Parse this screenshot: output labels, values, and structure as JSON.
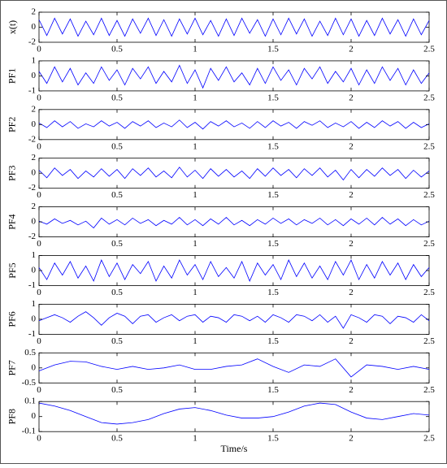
{
  "chart_data": [
    {
      "type": "line",
      "ylabel": "x(t)",
      "color": "#0000ff",
      "x": [
        0,
        0.05,
        0.1,
        0.15,
        0.2,
        0.25,
        0.3,
        0.35,
        0.4,
        0.45,
        0.5,
        0.55,
        0.6,
        0.65,
        0.7,
        0.75,
        0.8,
        0.85,
        0.9,
        0.95,
        1,
        1.05,
        1.1,
        1.15,
        1.2,
        1.25,
        1.3,
        1.35,
        1.4,
        1.45,
        1.5,
        1.55,
        1.6,
        1.65,
        1.7,
        1.75,
        1.8,
        1.85,
        1.9,
        1.95,
        2,
        2.05,
        2.1,
        2.15,
        2.2,
        2.25,
        2.3,
        2.35,
        2.4,
        2.45,
        2.5
      ],
      "values": [
        1,
        -1.1,
        1.2,
        -0.9,
        1.1,
        -1.2,
        0.8,
        -1,
        1.2,
        -1.1,
        0.9,
        -1.2,
        1.1,
        -0.8,
        1.2,
        -1.1,
        1,
        -1.2,
        1.1,
        -0.9,
        1.2,
        -1,
        0.9,
        -1.2,
        1.1,
        -1.1,
        1.2,
        -0.8,
        1,
        -1.2,
        1.1,
        -1,
        1.2,
        -0.9,
        1.1,
        -1.2,
        0.8,
        -1.1,
        1.2,
        -1,
        1.1,
        -1.2,
        0.9,
        -1.1,
        1.2,
        -0.9,
        1,
        -1.2,
        1.1,
        -1,
        0.9
      ],
      "xlim": [
        0,
        2.5
      ],
      "xticks": [
        0,
        0.5,
        1,
        1.5,
        2,
        2.5
      ],
      "ylim": [
        -2,
        2
      ],
      "yticks": [
        -2,
        0,
        2
      ]
    },
    {
      "type": "line",
      "ylabel": "PF1",
      "color": "#0000ff",
      "x": [
        0,
        0.05,
        0.1,
        0.15,
        0.2,
        0.25,
        0.3,
        0.35,
        0.4,
        0.45,
        0.5,
        0.55,
        0.6,
        0.65,
        0.7,
        0.75,
        0.8,
        0.85,
        0.9,
        0.95,
        1,
        1.05,
        1.1,
        1.15,
        1.2,
        1.25,
        1.3,
        1.35,
        1.4,
        1.45,
        1.5,
        1.55,
        1.6,
        1.65,
        1.7,
        1.75,
        1.8,
        1.85,
        1.9,
        1.95,
        2,
        2.05,
        2.1,
        2.15,
        2.2,
        2.25,
        2.3,
        2.35,
        2.4,
        2.45,
        2.5
      ],
      "values": [
        0.3,
        -0.5,
        0.6,
        -0.4,
        0.5,
        -0.6,
        0.2,
        -0.5,
        0.6,
        -0.3,
        0.4,
        -0.6,
        0.5,
        -0.2,
        0.6,
        -0.5,
        0.3,
        -0.4,
        0.7,
        -0.5,
        0.4,
        -0.8,
        0.5,
        -0.3,
        0.6,
        -0.4,
        0.2,
        -0.6,
        0.5,
        -0.5,
        0.6,
        -0.3,
        0.4,
        -0.6,
        0.5,
        -0.2,
        0.6,
        -0.5,
        0.3,
        -0.4,
        0.5,
        -0.6,
        0.4,
        -0.5,
        0.6,
        -0.3,
        0.5,
        -0.6,
        0.4,
        -0.5,
        0.2
      ],
      "xlim": [
        0,
        2.5
      ],
      "xticks": [
        0,
        0.5,
        1,
        1.5,
        2,
        2.5
      ],
      "ylim": [
        -1,
        1
      ],
      "yticks": [
        -1,
        0,
        1
      ]
    },
    {
      "type": "line",
      "ylabel": "PF2",
      "color": "#0000ff",
      "x": [
        0,
        0.05,
        0.1,
        0.15,
        0.2,
        0.25,
        0.3,
        0.35,
        0.4,
        0.45,
        0.5,
        0.55,
        0.6,
        0.65,
        0.7,
        0.75,
        0.8,
        0.85,
        0.9,
        0.95,
        1,
        1.05,
        1.1,
        1.15,
        1.2,
        1.25,
        1.3,
        1.35,
        1.4,
        1.45,
        1.5,
        1.55,
        1.6,
        1.65,
        1.7,
        1.75,
        1.8,
        1.85,
        1.9,
        1.95,
        2,
        2.05,
        2.1,
        2.15,
        2.2,
        2.25,
        2.3,
        2.35,
        2.4,
        2.45,
        2.5
      ],
      "values": [
        0.2,
        -0.4,
        0.5,
        -0.3,
        0.4,
        -0.5,
        0.1,
        -0.3,
        0.5,
        -0.2,
        0.3,
        -0.5,
        0.4,
        -0.2,
        0.5,
        -0.4,
        0.2,
        -0.3,
        0.6,
        -0.4,
        0.3,
        -0.6,
        0.4,
        -0.2,
        0.5,
        -0.3,
        0.2,
        -0.5,
        0.4,
        -0.4,
        0.5,
        -0.2,
        0.3,
        -0.5,
        0.4,
        -0.1,
        0.5,
        -0.4,
        0.2,
        -0.3,
        0.4,
        -0.5,
        0.3,
        -0.4,
        0.5,
        -0.2,
        0.4,
        -0.5,
        0.3,
        -0.4,
        0.1
      ],
      "xlim": [
        0,
        2.5
      ],
      "xticks": [
        0,
        0.5,
        1,
        1.5,
        2,
        2.5
      ],
      "ylim": [
        -2,
        2
      ],
      "yticks": [
        -2,
        0,
        2
      ]
    },
    {
      "type": "line",
      "ylabel": "PF3",
      "color": "#0000ff",
      "x": [
        0,
        0.05,
        0.1,
        0.15,
        0.2,
        0.25,
        0.3,
        0.35,
        0.4,
        0.45,
        0.5,
        0.55,
        0.6,
        0.65,
        0.7,
        0.75,
        0.8,
        0.85,
        0.9,
        0.95,
        1,
        1.05,
        1.1,
        1.15,
        1.2,
        1.25,
        1.3,
        1.35,
        1.4,
        1.45,
        1.5,
        1.55,
        1.6,
        1.65,
        1.7,
        1.75,
        1.8,
        1.85,
        1.9,
        1.95,
        2,
        2.05,
        2.1,
        2.15,
        2.2,
        2.25,
        2.3,
        2.35,
        2.4,
        2.45,
        2.5
      ],
      "values": [
        0.4,
        -0.6,
        0.7,
        -0.3,
        0.5,
        -0.7,
        0.3,
        -0.5,
        0.6,
        -0.4,
        0.5,
        -0.7,
        0.6,
        -0.3,
        0.7,
        -0.5,
        0.3,
        -0.6,
        0.8,
        -0.5,
        0.4,
        -0.7,
        0.6,
        -0.4,
        0.5,
        -0.5,
        0.3,
        -0.7,
        0.6,
        -0.4,
        0.7,
        -0.3,
        0.5,
        -0.6,
        0.6,
        -0.3,
        0.7,
        -0.5,
        0.4,
        -0.9,
        0.5,
        -0.6,
        0.5,
        -0.4,
        0.7,
        -0.3,
        0.5,
        -0.7,
        0.4,
        -0.5,
        0.3
      ],
      "xlim": [
        0,
        2.5
      ],
      "xticks": [
        0,
        0.5,
        1,
        1.5,
        2,
        2.5
      ],
      "ylim": [
        -2,
        2
      ],
      "yticks": [
        -2,
        0,
        2
      ]
    },
    {
      "type": "line",
      "ylabel": "PF4",
      "color": "#0000ff",
      "x": [
        0,
        0.05,
        0.1,
        0.15,
        0.2,
        0.25,
        0.3,
        0.35,
        0.4,
        0.45,
        0.5,
        0.55,
        0.6,
        0.65,
        0.7,
        0.75,
        0.8,
        0.85,
        0.9,
        0.95,
        1,
        1.05,
        1.1,
        1.15,
        1.2,
        1.25,
        1.3,
        1.35,
        1.4,
        1.45,
        1.5,
        1.55,
        1.6,
        1.65,
        1.7,
        1.75,
        1.8,
        1.85,
        1.9,
        1.95,
        2,
        2.05,
        2.1,
        2.15,
        2.2,
        2.25,
        2.3,
        2.35,
        2.4,
        2.45,
        2.5
      ],
      "values": [
        0.1,
        -0.3,
        0.4,
        -0.2,
        0.2,
        -0.4,
        0.1,
        -0.8,
        0.5,
        -0.3,
        0.3,
        -0.4,
        0.5,
        -0.2,
        0.3,
        -0.5,
        0.2,
        -0.3,
        0.6,
        -0.4,
        0.3,
        -0.5,
        0.4,
        -0.3,
        0.6,
        -0.4,
        0.2,
        -0.5,
        0.3,
        -0.3,
        0.5,
        -0.2,
        0.4,
        -0.4,
        0.3,
        -0.2,
        0.5,
        -0.4,
        0.3,
        -0.5,
        0.4,
        -0.3,
        0.5,
        -0.4,
        0.6,
        -0.3,
        0.4,
        -0.5,
        0.3,
        -0.4,
        0.1
      ],
      "xlim": [
        0,
        2.5
      ],
      "xticks": [
        0,
        0.5,
        1,
        1.5,
        2,
        2.5
      ],
      "ylim": [
        -2,
        2
      ],
      "yticks": [
        -2,
        0,
        2
      ]
    },
    {
      "type": "line",
      "ylabel": "PF5",
      "color": "#0000ff",
      "x": [
        0,
        0.05,
        0.1,
        0.15,
        0.2,
        0.25,
        0.3,
        0.35,
        0.4,
        0.45,
        0.5,
        0.55,
        0.6,
        0.65,
        0.7,
        0.75,
        0.8,
        0.85,
        0.9,
        0.95,
        1,
        1.05,
        1.1,
        1.15,
        1.2,
        1.25,
        1.3,
        1.35,
        1.4,
        1.45,
        1.5,
        1.55,
        1.6,
        1.65,
        1.7,
        1.75,
        1.8,
        1.85,
        1.9,
        1.95,
        2,
        2.05,
        2.1,
        2.15,
        2.2,
        2.25,
        2.3,
        2.35,
        2.4,
        2.45,
        2.5
      ],
      "values": [
        0.2,
        -0.6,
        0.5,
        -0.3,
        0.6,
        -0.5,
        0.3,
        -0.7,
        0.7,
        -0.4,
        0.5,
        -0.6,
        0.4,
        -0.2,
        0.6,
        -0.7,
        0.3,
        -0.5,
        0.7,
        -0.3,
        0.4,
        -0.6,
        0.6,
        -0.4,
        0.2,
        -0.5,
        0.6,
        -0.7,
        0.5,
        -0.3,
        0.4,
        -0.6,
        0.7,
        -0.4,
        0.5,
        -0.5,
        0.3,
        -0.6,
        0.6,
        -0.3,
        0.7,
        -0.6,
        0.4,
        -0.5,
        0.6,
        -0.3,
        0.5,
        -0.6,
        0.4,
        -0.4,
        0.2
      ],
      "xlim": [
        0,
        2.5
      ],
      "xticks": [
        0,
        0.5,
        1,
        1.5,
        2,
        2.5
      ],
      "ylim": [
        -1,
        1
      ],
      "yticks": [
        -1,
        0,
        1
      ]
    },
    {
      "type": "line",
      "ylabel": "PF6",
      "color": "#0000ff",
      "x": [
        0,
        0.05,
        0.1,
        0.15,
        0.2,
        0.25,
        0.3,
        0.35,
        0.4,
        0.45,
        0.5,
        0.55,
        0.6,
        0.65,
        0.7,
        0.75,
        0.8,
        0.85,
        0.9,
        0.95,
        1,
        1.05,
        1.1,
        1.15,
        1.2,
        1.25,
        1.3,
        1.35,
        1.4,
        1.45,
        1.5,
        1.55,
        1.6,
        1.65,
        1.7,
        1.75,
        1.8,
        1.85,
        1.9,
        1.95,
        2,
        2.05,
        2.1,
        2.15,
        2.2,
        2.25,
        2.3,
        2.35,
        2.4,
        2.45,
        2.5
      ],
      "values": [
        -0.1,
        0.1,
        0.3,
        0.1,
        -0.2,
        0.2,
        0.5,
        0.1,
        -0.4,
        0.1,
        0.4,
        0.2,
        -0.3,
        0.2,
        0.3,
        -0.2,
        0.1,
        0.3,
        -0.1,
        0.2,
        0.3,
        -0.2,
        0.2,
        0.1,
        -0.2,
        0.3,
        0.2,
        -0.1,
        0.2,
        -0.2,
        0.3,
        0.1,
        -0.2,
        0.3,
        0.2,
        -0.1,
        0.3,
        -0.2,
        0.2,
        -0.6,
        0.3,
        0.1,
        -0.2,
        0.3,
        0.2,
        -0.3,
        0.2,
        0.1,
        -0.2,
        0.3,
        -0.1
      ],
      "xlim": [
        0,
        2.5
      ],
      "xticks": [
        0,
        0.5,
        1,
        1.5,
        2,
        2.5
      ],
      "ylim": [
        -1,
        1
      ],
      "yticks": [
        -1,
        0,
        1
      ]
    },
    {
      "type": "line",
      "ylabel": "PF7",
      "color": "#0000ff",
      "x": [
        0,
        0.1,
        0.2,
        0.3,
        0.4,
        0.5,
        0.6,
        0.7,
        0.8,
        0.9,
        1,
        1.1,
        1.2,
        1.3,
        1.4,
        1.5,
        1.6,
        1.7,
        1.8,
        1.9,
        2,
        2.1,
        2.2,
        2.3,
        2.4,
        2.5
      ],
      "values": [
        -0.1,
        0.1,
        0.22,
        0.2,
        0.05,
        -0.05,
        0.05,
        -0.05,
        0,
        0.1,
        -0.05,
        -0.05,
        0.05,
        0.1,
        0.3,
        0.05,
        -0.15,
        0.1,
        0.05,
        0.3,
        -0.3,
        0.1,
        0.05,
        -0.05,
        0.05,
        -0.05
      ],
      "xlim": [
        0,
        2.5
      ],
      "xticks": [
        0,
        0.5,
        1,
        1.5,
        2,
        2.5
      ],
      "ylim": [
        -0.5,
        0.5
      ],
      "yticks": [
        -0.5,
        0,
        0.5
      ]
    },
    {
      "type": "line",
      "ylabel": "PF8",
      "xlabel": "Time/s",
      "color": "#0000ff",
      "x": [
        0,
        0.1,
        0.2,
        0.3,
        0.4,
        0.5,
        0.6,
        0.7,
        0.8,
        0.9,
        1,
        1.1,
        1.2,
        1.3,
        1.4,
        1.5,
        1.6,
        1.7,
        1.8,
        1.9,
        2,
        2.1,
        2.2,
        2.3,
        2.4,
        2.5
      ],
      "values": [
        0.09,
        0.07,
        0.04,
        0,
        -0.04,
        -0.05,
        -0.04,
        -0.02,
        0.02,
        0.05,
        0.06,
        0.04,
        0.01,
        -0.01,
        -0.01,
        0,
        0.03,
        0.07,
        0.09,
        0.08,
        0.03,
        -0.01,
        -0.02,
        0,
        0.02,
        0.01
      ],
      "xlim": [
        0,
        2.5
      ],
      "xticks": [
        0,
        0.5,
        1,
        1.5,
        2,
        2.5
      ],
      "ylim": [
        -0.1,
        0.1
      ],
      "yticks": [
        -0.1,
        0,
        0.1
      ]
    }
  ]
}
